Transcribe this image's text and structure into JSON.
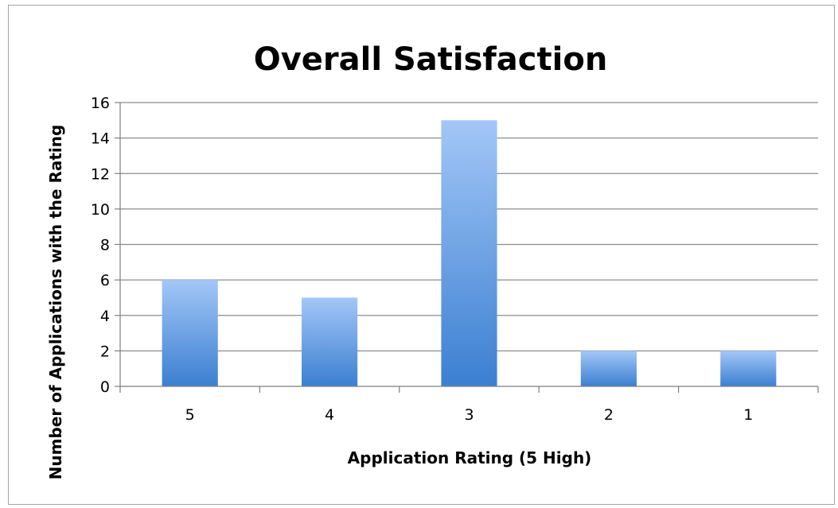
{
  "chart_data": {
    "type": "bar",
    "title": "Overall Satisfaction",
    "xlabel": "Application Rating (5 High)",
    "ylabel": "Number of Applications with the Rating",
    "categories": [
      "5",
      "4",
      "3",
      "2",
      "1"
    ],
    "values": [
      6,
      5,
      15,
      2,
      2
    ],
    "ylim": [
      0,
      16
    ],
    "yticks": [
      0,
      2,
      4,
      6,
      8,
      10,
      12,
      14,
      16
    ],
    "grid": true,
    "legend": "none",
    "colors": {
      "bar_top": "#a3c7f7",
      "bar_bottom": "#3b7fd1",
      "grid": "#8c8c8c",
      "axis": "#7f7f7f"
    }
  }
}
